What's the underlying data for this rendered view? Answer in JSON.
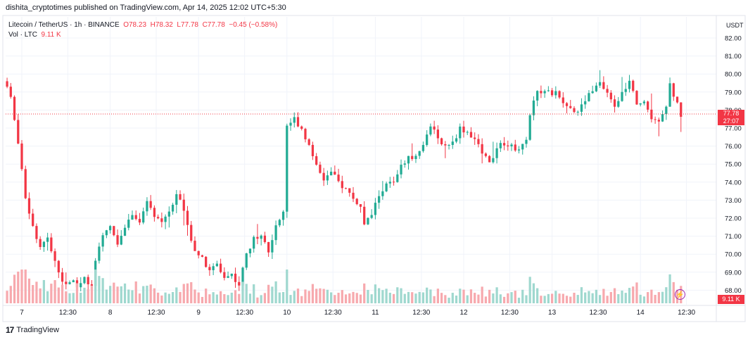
{
  "header": {
    "publisher_line": "dishita_cryptotimes published on TradingView.com, Apr 14, 2025 12:02 UTC+5:30"
  },
  "legend": {
    "symbol": "Litecoin / TetherUS · 1h · BINANCE",
    "open": "O78.23",
    "high": "H78.32",
    "low": "L77.78",
    "close": "C77.78",
    "change": "−0.45 (−0.58%)",
    "vol_label": "Vol · LTC",
    "vol_value": "9.11 K"
  },
  "axis": {
    "unit": "USDT",
    "price_tag": "77.78",
    "countdown": "27:07",
    "volume_tag": "9.11 K"
  },
  "footer": {
    "brand": "TradingView",
    "logo_icon": "tradingview-logo-icon"
  },
  "colors": {
    "up": "#22ab94",
    "down": "#f23645",
    "vol_up": "#9fd8cf",
    "vol_down": "#f7a9ae"
  },
  "chart_data": {
    "type": "candlestick",
    "title": "Litecoin / TetherUS · 1h · BINANCE",
    "ylabel": "USDT",
    "ylim": [
      67.5,
      82.5
    ],
    "yticks": [
      68,
      69,
      70,
      71,
      72,
      73,
      74,
      75,
      76,
      77,
      78,
      79,
      80,
      81,
      82
    ],
    "ytick_labels": [
      "68.00",
      "69.00",
      "70.00",
      "71.00",
      "72.00",
      "73.00",
      "74.00",
      "75.00",
      "76.00",
      "77.00",
      "78.00",
      "79.00",
      "80.00",
      "81.00",
      "82.00"
    ],
    "xticks": [
      {
        "label": "7",
        "hour": 0
      },
      {
        "label": "12:30",
        "hour": 12.5
      },
      {
        "label": "8",
        "hour": 24
      },
      {
        "label": "12:30",
        "hour": 36.5
      },
      {
        "label": "9",
        "hour": 48
      },
      {
        "label": "12:30",
        "hour": 60.5
      },
      {
        "label": "10",
        "hour": 72
      },
      {
        "label": "12:30",
        "hour": 84.5
      },
      {
        "label": "11",
        "hour": 96
      },
      {
        "label": "12:30",
        "hour": 108.5
      },
      {
        "label": "12",
        "hour": 120
      },
      {
        "label": "12:30",
        "hour": 132.5
      },
      {
        "label": "13",
        "hour": 144
      },
      {
        "label": "12:30",
        "hour": 156.5
      },
      {
        "label": "14",
        "hour": 168
      },
      {
        "label": "12:30",
        "hour": 180.5
      }
    ],
    "last_price": 77.78,
    "start_hour": -4,
    "key_closes": [
      [
        -4,
        79.3
      ],
      [
        -3,
        78.6
      ],
      [
        -1,
        76.3
      ],
      [
        1,
        73.2
      ],
      [
        3,
        71.6
      ],
      [
        5,
        70.4
      ],
      [
        7,
        70.8
      ],
      [
        9,
        69.6
      ],
      [
        11,
        68.4
      ],
      [
        13,
        68.6
      ],
      [
        15,
        68.3
      ],
      [
        17,
        68.6
      ],
      [
        19,
        68.1
      ],
      [
        20,
        69.5
      ],
      [
        22,
        71.0
      ],
      [
        24,
        71.5
      ],
      [
        26,
        70.6
      ],
      [
        28,
        71.5
      ],
      [
        30,
        72.3
      ],
      [
        32,
        71.8
      ],
      [
        34,
        72.8
      ],
      [
        36,
        72.2
      ],
      [
        38,
        71.7
      ],
      [
        40,
        72.2
      ],
      [
        42,
        73.3
      ],
      [
        43,
        73.2
      ],
      [
        45,
        71.5
      ],
      [
        47,
        70.3
      ],
      [
        49,
        69.7
      ],
      [
        51,
        69.0
      ],
      [
        53,
        69.5
      ],
      [
        55,
        68.7
      ],
      [
        57,
        68.9
      ],
      [
        59,
        68.3
      ],
      [
        61,
        70.0
      ],
      [
        63,
        70.8
      ],
      [
        65,
        71.2
      ],
      [
        67,
        70.1
      ],
      [
        69,
        71.6
      ],
      [
        71,
        72.4
      ],
      [
        72,
        77.2
      ],
      [
        74,
        77.5
      ],
      [
        76,
        77.0
      ],
      [
        78,
        76.0
      ],
      [
        80,
        75.0
      ],
      [
        82,
        74.2
      ],
      [
        84,
        74.5
      ],
      [
        86,
        74.0
      ],
      [
        88,
        73.6
      ],
      [
        90,
        73.1
      ],
      [
        92,
        72.6
      ],
      [
        93,
        71.6
      ],
      [
        95,
        72.2
      ],
      [
        97,
        73.3
      ],
      [
        99,
        73.9
      ],
      [
        101,
        74.0
      ],
      [
        103,
        75.0
      ],
      [
        105,
        75.3
      ],
      [
        107,
        75.6
      ],
      [
        109,
        76.0
      ],
      [
        111,
        77.2
      ],
      [
        113,
        76.3
      ],
      [
        115,
        76.1
      ],
      [
        117,
        76.2
      ],
      [
        119,
        77.0
      ],
      [
        121,
        76.8
      ],
      [
        123,
        76.4
      ],
      [
        125,
        75.6
      ],
      [
        127,
        75.2
      ],
      [
        129,
        75.8
      ],
      [
        131,
        76.2
      ],
      [
        133,
        76.0
      ],
      [
        135,
        75.8
      ],
      [
        137,
        76.5
      ],
      [
        139,
        78.7
      ],
      [
        141,
        79.1
      ],
      [
        143,
        79.0
      ],
      [
        145,
        78.9
      ],
      [
        147,
        78.5
      ],
      [
        149,
        78.1
      ],
      [
        151,
        77.9
      ],
      [
        153,
        78.5
      ],
      [
        155,
        79.2
      ],
      [
        157,
        79.4
      ],
      [
        159,
        78.8
      ],
      [
        161,
        78.2
      ],
      [
        163,
        78.9
      ],
      [
        165,
        79.6
      ],
      [
        167,
        78.2
      ],
      [
        169,
        78.6
      ],
      [
        171,
        77.6
      ],
      [
        173,
        77.5
      ],
      [
        175,
        78.3
      ],
      [
        176,
        79.4
      ],
      [
        178,
        78.3
      ],
      [
        179,
        77.78
      ]
    ]
  }
}
